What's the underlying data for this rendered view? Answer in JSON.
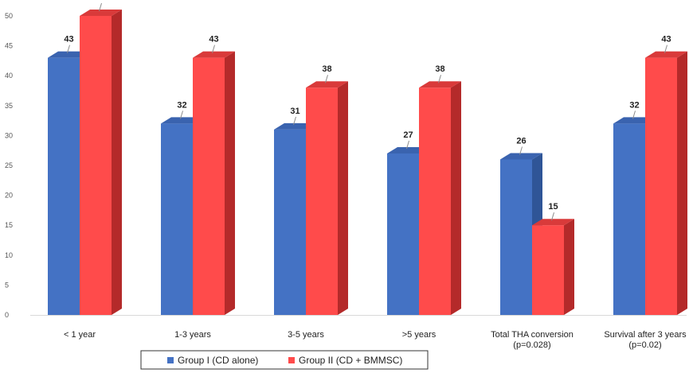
{
  "chart_data": {
    "type": "bar",
    "title": "",
    "xlabel": "",
    "ylabel": "",
    "ylim": [
      0,
      50
    ],
    "yticks": [
      0,
      5,
      10,
      15,
      20,
      25,
      30,
      35,
      40,
      45,
      50
    ],
    "grid": false,
    "legend_position": "bottom",
    "categories": [
      [
        "< 1 year"
      ],
      [
        "1-3 years"
      ],
      [
        "3-5 years"
      ],
      [
        ">5 years"
      ],
      [
        "Total THA conversion",
        "(p=0.028)"
      ],
      [
        "Survival after 3 years",
        "(p=0.02)"
      ]
    ],
    "series": [
      {
        "name": "Group I (CD alone)",
        "values": [
          43,
          32,
          31,
          27,
          26,
          32
        ],
        "color": "#4472C4",
        "side_color": "#2F5597",
        "top_color": "#3A63AF"
      },
      {
        "name": "Group II (CD + BMMSC)",
        "values": [
          50,
          43,
          38,
          38,
          15,
          43
        ],
        "color": "#FF4B4B",
        "side_color": "#B42A2A",
        "top_color": "#D93A3A"
      }
    ]
  }
}
